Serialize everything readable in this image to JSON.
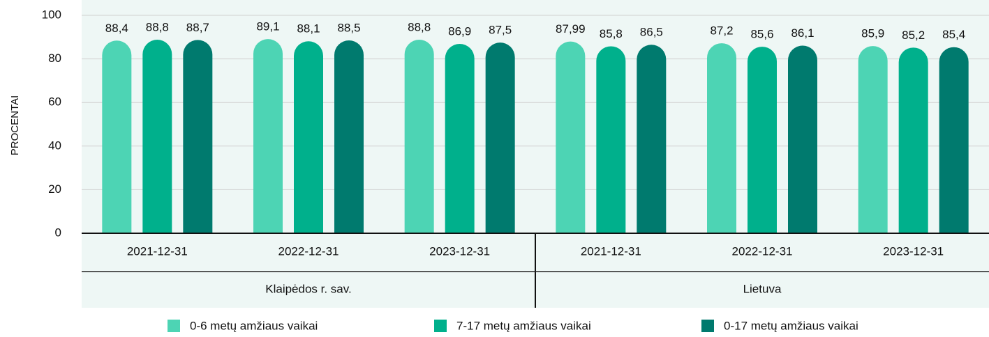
{
  "chart_data": {
    "type": "bar",
    "y_axis_label": "PROCENTAI",
    "groups": [
      {
        "label": "Klaipėdos r. sav.",
        "categories": [
          "2021-12-31",
          "2022-12-31",
          "2023-12-31"
        ]
      },
      {
        "label": "Lietuva",
        "categories": [
          "2021-12-31",
          "2022-12-31",
          "2023-12-31"
        ]
      }
    ],
    "series": [
      {
        "name": "0-6 metų amžiaus vaikai",
        "color": "#4dd4b4",
        "values": [
          88.4,
          89.1,
          88.8,
          87.99,
          87.2,
          85.9
        ],
        "value_labels": [
          "88,4",
          "89,1",
          "88,8",
          "87,99",
          "87,2",
          "85,9"
        ]
      },
      {
        "name": "7-17 metų amžiaus vaikai",
        "color": "#00b08c",
        "values": [
          88.8,
          88.1,
          86.9,
          85.8,
          85.6,
          85.2
        ],
        "value_labels": [
          "88,8",
          "88,1",
          "86,9",
          "85,8",
          "85,6",
          "85,2"
        ]
      },
      {
        "name": "0-17 metų amžiaus vaikai",
        "color": "#007a6e",
        "values": [
          88.7,
          88.5,
          87.5,
          86.5,
          86.1,
          85.4
        ],
        "value_labels": [
          "88,7",
          "88,5",
          "87,5",
          "86,5",
          "86,1",
          "85,4"
        ]
      }
    ],
    "ylim": [
      0,
      100
    ],
    "yticks": [
      0,
      20,
      40,
      60,
      80,
      100
    ],
    "grid": true,
    "legend": "bottom"
  }
}
